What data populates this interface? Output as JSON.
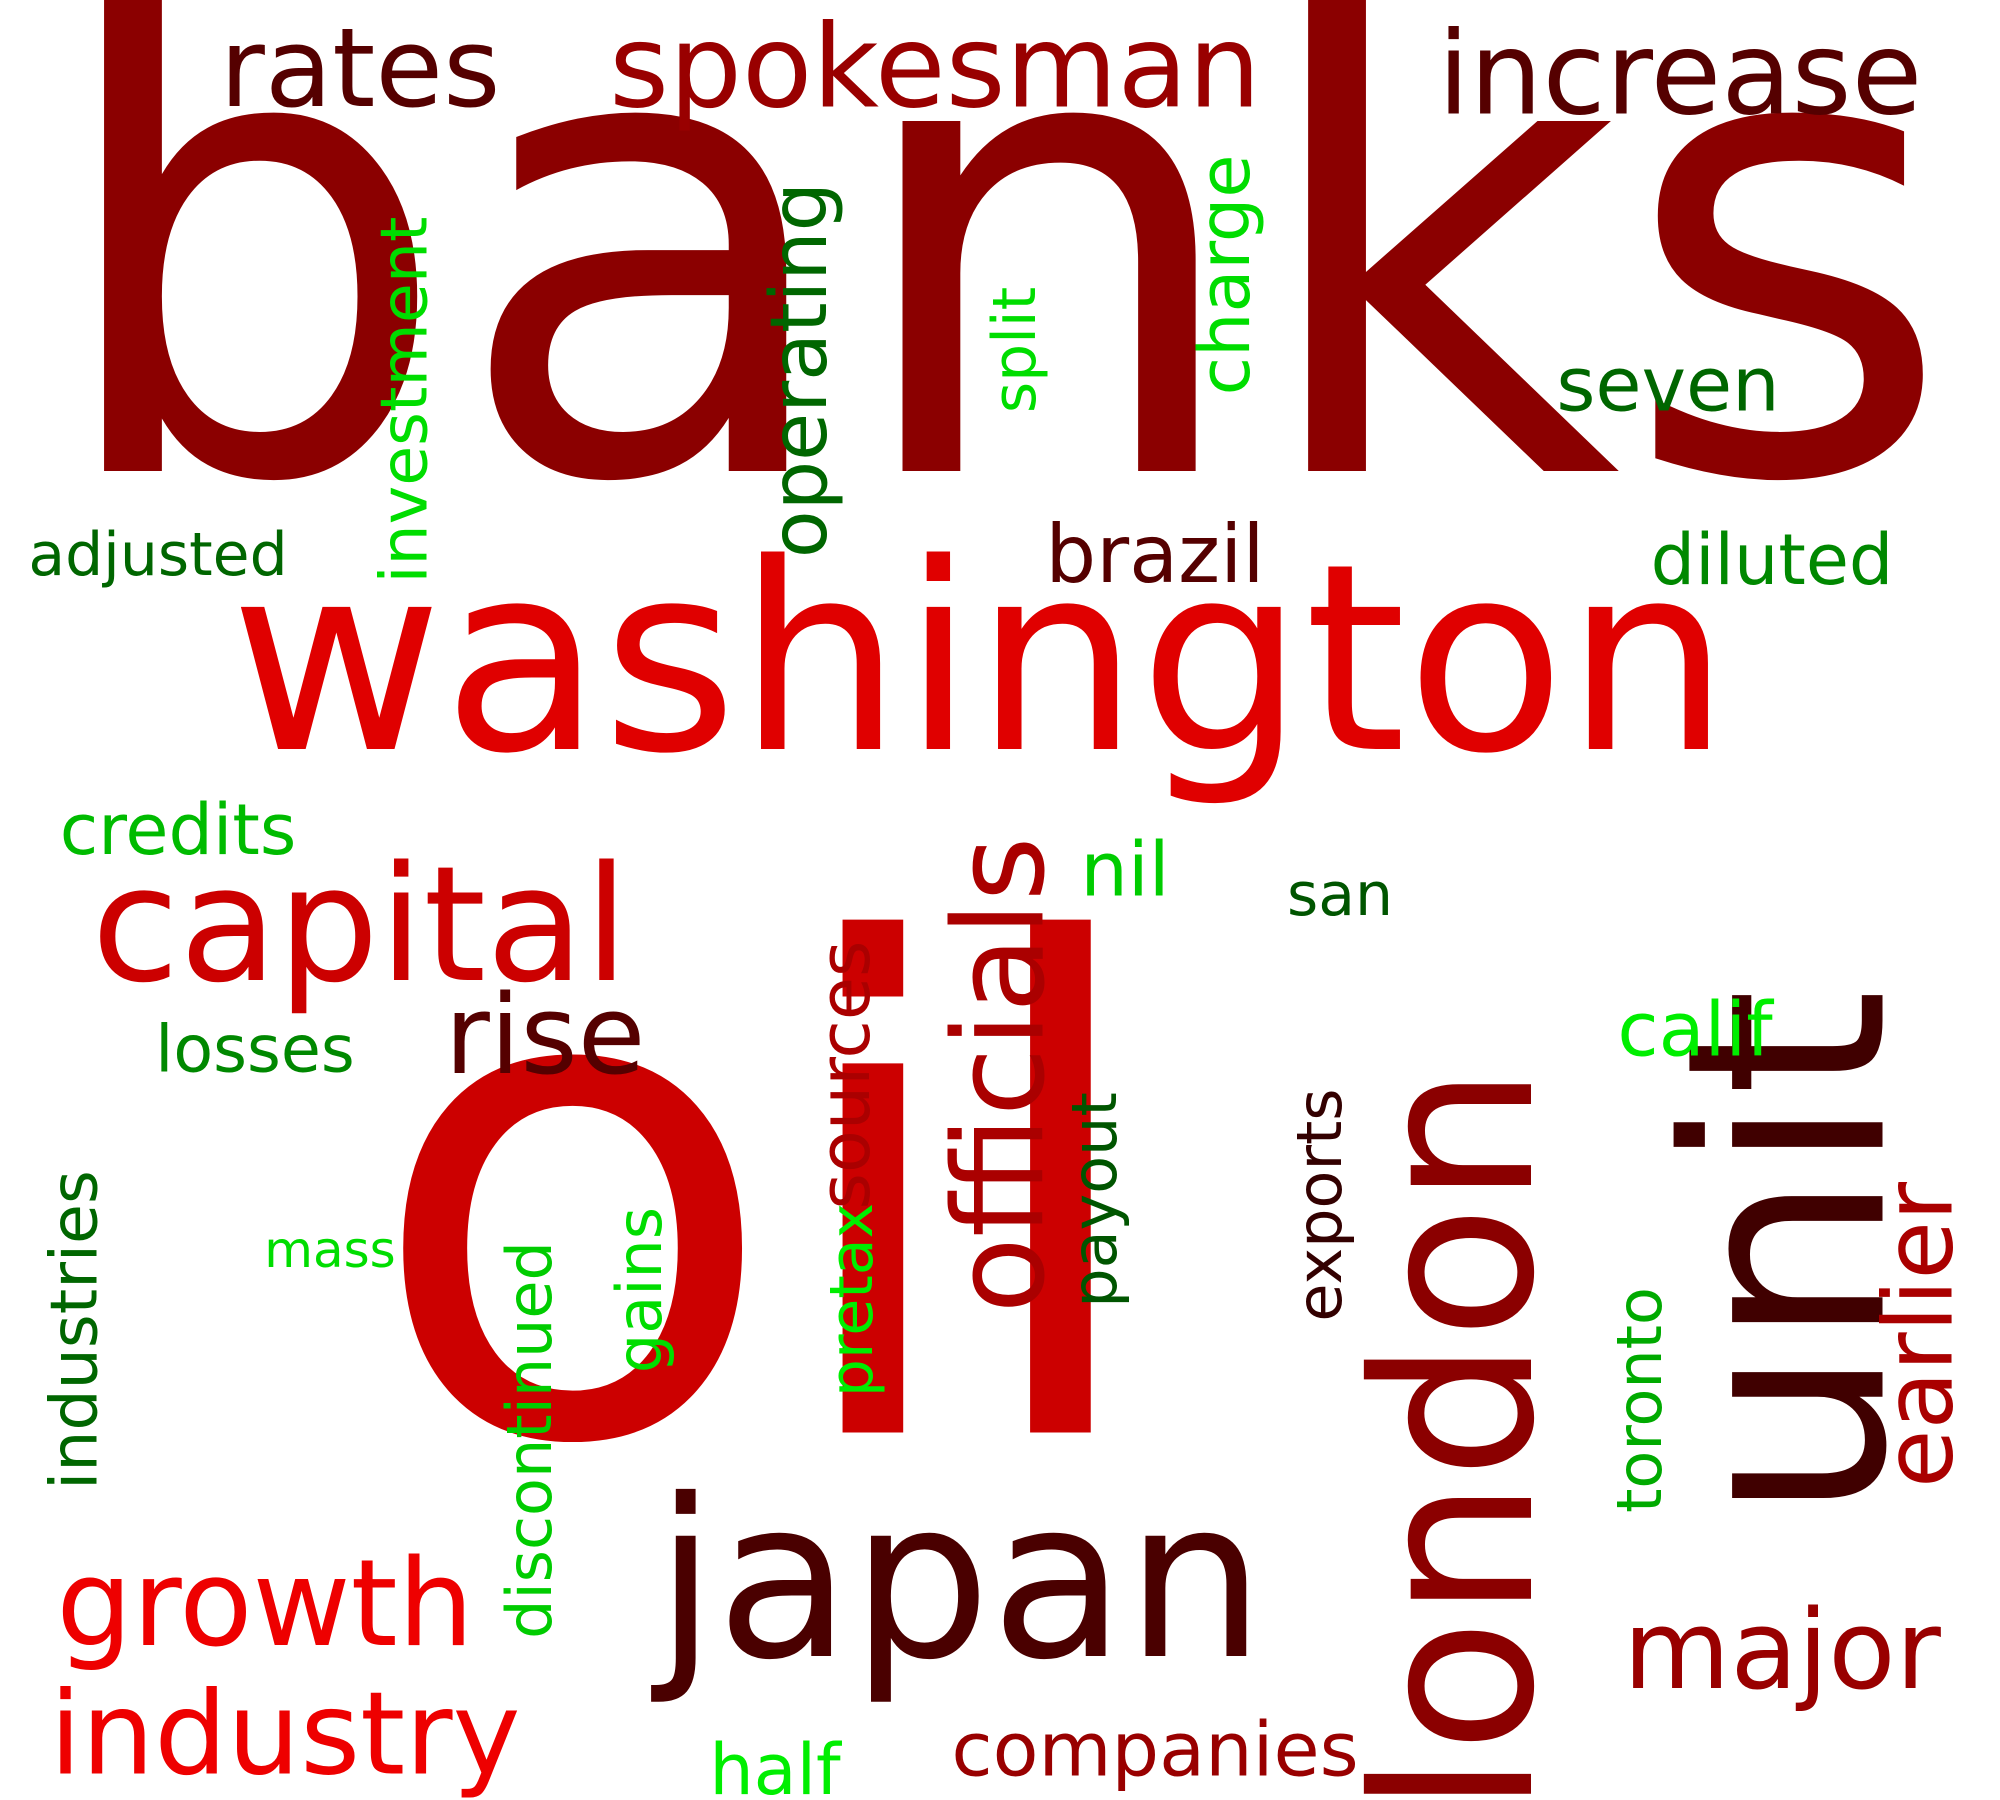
{
  "words": [
    {
      "key": "banks",
      "text": "banks",
      "color": "#8b0000"
    },
    {
      "key": "oil",
      "text": "oil",
      "color": "#cc0000"
    },
    {
      "key": "washington",
      "text": "washington",
      "color": "#e00000"
    },
    {
      "key": "japan",
      "text": "japan",
      "color": "#4a0000"
    },
    {
      "key": "unit",
      "text": "unit",
      "color": "#400000"
    },
    {
      "key": "london",
      "text": "london",
      "color": "#8b0000"
    },
    {
      "key": "capital",
      "text": "capital",
      "color": "#cc0000"
    },
    {
      "key": "growth",
      "text": "growth",
      "color": "#ee0000"
    },
    {
      "key": "industry",
      "text": "industry",
      "color": "#ee0000"
    },
    {
      "key": "spokesman",
      "text": "spokesman",
      "color": "#990000"
    },
    {
      "key": "rates",
      "text": "rates",
      "color": "#550000"
    },
    {
      "key": "increase",
      "text": "increase",
      "color": "#550000"
    },
    {
      "key": "officials",
      "text": "officials",
      "color": "#aa0000"
    },
    {
      "key": "rise",
      "text": "rise",
      "color": "#550000"
    },
    {
      "key": "major",
      "text": "major",
      "color": "#990000"
    },
    {
      "key": "earlier",
      "text": "earlier",
      "color": "#aa0000"
    },
    {
      "key": "companies",
      "text": "companies",
      "color": "#990000"
    },
    {
      "key": "sources",
      "text": "sources",
      "color": "#aa0000"
    },
    {
      "key": "operating",
      "text": "operating",
      "color": "#006600"
    },
    {
      "key": "investment",
      "text": "investment",
      "color": "#00dd00"
    },
    {
      "key": "charge",
      "text": "charge",
      "color": "#00dd00"
    },
    {
      "key": "split",
      "text": "split",
      "color": "#00dd00"
    },
    {
      "key": "seven",
      "text": "seven",
      "color": "#006600"
    },
    {
      "key": "brazil",
      "text": "brazil",
      "color": "#550000"
    },
    {
      "key": "diluted",
      "text": "diluted",
      "color": "#008800"
    },
    {
      "key": "adjusted",
      "text": "adjusted",
      "color": "#006600"
    },
    {
      "key": "credits",
      "text": "credits",
      "color": "#00bb00"
    },
    {
      "key": "nil",
      "text": "nil",
      "color": "#00cc00"
    },
    {
      "key": "san",
      "text": "san",
      "color": "#005500"
    },
    {
      "key": "calif",
      "text": "calif",
      "color": "#00ee00"
    },
    {
      "key": "losses",
      "text": "losses",
      "color": "#008800"
    },
    {
      "key": "industries",
      "text": "industries",
      "color": "#006600"
    },
    {
      "key": "mass",
      "text": "mass",
      "color": "#00dd00"
    },
    {
      "key": "discontinued",
      "text": "discontinued",
      "color": "#00cc00"
    },
    {
      "key": "gains",
      "text": "gains",
      "color": "#00dd00"
    },
    {
      "key": "pretax",
      "text": "pretax",
      "color": "#00ee00"
    },
    {
      "key": "payout",
      "text": "payout",
      "color": "#005500"
    },
    {
      "key": "exports",
      "text": "exports",
      "color": "#330000"
    },
    {
      "key": "toronto",
      "text": "toronto",
      "color": "#00aa00"
    },
    {
      "key": "half",
      "text": "half",
      "color": "#00ee00"
    }
  ]
}
